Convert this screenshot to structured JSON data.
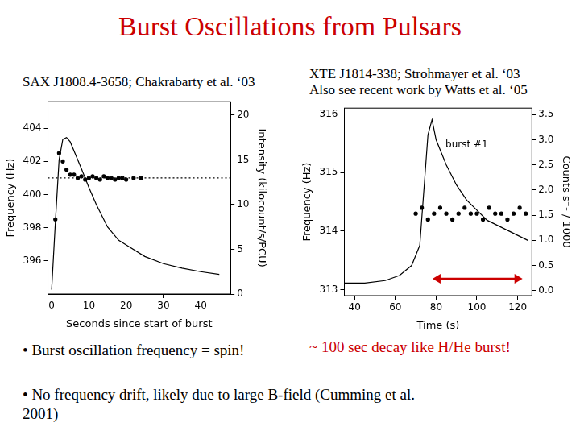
{
  "title": "Burst Oscillations from Pulsars",
  "bullets": [
    "• Burst oscillation frequency = spin!",
    "• No frequency drift, likely due to large B-field (Cumming et al. 2001)"
  ],
  "highlight": "~ 100 sec decay like H/He burst!",
  "chart_data": [
    {
      "type": "line",
      "title": "SAX J1808.4-3658; Chakrabarty et al. ‘03",
      "x_label": "Seconds since start of burst",
      "y_label": "Frequency (Hz)",
      "y2_label": "Intensity (kilocount/s/PCU)",
      "xlim": [
        -1,
        48
      ],
      "xticks": [
        0,
        10,
        20,
        30,
        40
      ],
      "ylim": [
        394,
        405.6
      ],
      "yticks": [
        396,
        398,
        400,
        402,
        404
      ],
      "y2lim": [
        0,
        21.5
      ],
      "y2ticks": [
        0,
        5,
        10,
        15,
        20
      ],
      "grid": false,
      "series": [
        {
          "type": "line",
          "axis": "y2",
          "color": "#000000",
          "line_style": "solid",
          "x": [
            0,
            1,
            2,
            3,
            4,
            5,
            6,
            8,
            10,
            12,
            15,
            18,
            20,
            25,
            30,
            35,
            40,
            45
          ],
          "values": [
            0.5,
            8,
            15,
            17.3,
            17.5,
            17,
            16,
            14,
            11.9,
            10,
            7.5,
            6,
            5.5,
            4.2,
            3.4,
            2.9,
            2.5,
            2.2
          ]
        },
        {
          "type": "line",
          "axis": "y",
          "color": "#000000",
          "line_style": "dotted",
          "x": [
            -1,
            48
          ],
          "values": [
            401,
            401
          ]
        },
        {
          "type": "scatter",
          "axis": "y",
          "color": "#000000",
          "marker": "circle",
          "x": [
            1,
            2,
            3,
            4,
            5,
            6,
            7,
            8,
            9,
            10,
            11,
            12,
            13,
            14,
            15,
            16,
            17,
            18,
            19,
            20,
            22,
            24
          ],
          "values": [
            398.5,
            402.5,
            402,
            401.5,
            401.2,
            401.2,
            401,
            401.1,
            400.9,
            401,
            401.1,
            401,
            400.9,
            401.1,
            401,
            401,
            400.9,
            401,
            401,
            400.9,
            401,
            401
          ]
        }
      ]
    },
    {
      "type": "line",
      "title": "XTE J1814-338; Strohmayer et al. ‘03",
      "subtitle": "Also see recent work by Watts et al. ‘05",
      "x_label": "Time (s)",
      "y_label": "Frequency (Hz)",
      "y2_label": "Counts s⁻¹ / 1000",
      "xlim": [
        35,
        127
      ],
      "xticks": [
        40,
        60,
        80,
        100,
        120
      ],
      "ylim": [
        312.9,
        316.1
      ],
      "yticks": [
        313,
        314,
        315,
        316
      ],
      "y2lim": [
        -0.1,
        3.63
      ],
      "y2ticks": [
        {
          "value": 0,
          "label": "0.0"
        },
        {
          "value": 0.5,
          "label": "0.5"
        },
        {
          "value": 1,
          "label": "1.0"
        },
        {
          "value": 1.5,
          "label": "1.5"
        },
        {
          "value": 2,
          "label": "2.0"
        },
        {
          "value": 2.5,
          "label": "2.5"
        },
        {
          "value": 3,
          "label": "3.0"
        },
        {
          "value": 3.5,
          "label": "3.5"
        }
      ],
      "grid": false,
      "annotations": [
        {
          "text": "burst #1",
          "x": 95,
          "y": 2.9,
          "axis": "y2"
        }
      ],
      "series": [
        {
          "type": "line",
          "axis": "y2",
          "color": "#000000",
          "line_style": "solid",
          "x": [
            35,
            45,
            55,
            62,
            68,
            72,
            74,
            76,
            78,
            80,
            85,
            90,
            95,
            100,
            105,
            110,
            115,
            120,
            125
          ],
          "values": [
            0.15,
            0.15,
            0.2,
            0.3,
            0.5,
            0.9,
            2.0,
            3.1,
            3.4,
            3.0,
            2.5,
            2.1,
            1.8,
            1.6,
            1.4,
            1.3,
            1.2,
            1.1,
            1.0
          ]
        },
        {
          "type": "scatter",
          "axis": "y",
          "color": "#000000",
          "marker": "circle",
          "x": [
            70,
            73,
            76,
            79,
            82,
            85,
            88,
            91,
            94,
            97,
            100,
            103,
            106,
            109,
            112,
            115,
            118,
            121,
            124
          ],
          "values": [
            314.3,
            314.4,
            314.2,
            314.3,
            314.4,
            314.3,
            314.2,
            314.3,
            314.4,
            314.3,
            314.3,
            314.2,
            314.4,
            314.3,
            314.3,
            314.2,
            314.3,
            314.4,
            314.3
          ]
        }
      ]
    }
  ]
}
